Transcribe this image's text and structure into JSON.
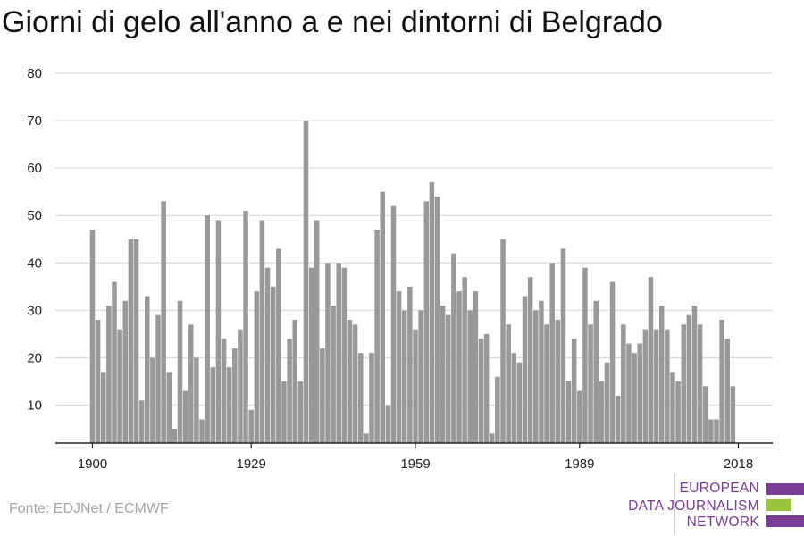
{
  "chart_title": "Giorni di gelo all'anno a e nei dintorni di Belgrado",
  "source": "Fonte: EDJNet / ECMWF",
  "logo": {
    "lines": [
      "EUROPEAN",
      "DATA JOURNALISM",
      "NETWORK"
    ],
    "colors": {
      "text": "#7a3d96",
      "purple": "#7a3d96",
      "green": "#9bc53d"
    }
  },
  "colors": {
    "bar": "#999999",
    "grid": "#dcdcdc",
    "axis": "#222222"
  },
  "chart_data": {
    "type": "bar",
    "title": "Giorni di gelo all'anno a e nei dintorni di Belgrado",
    "xlabel": "",
    "ylabel": "",
    "ylim": [
      2,
      80
    ],
    "yticks": [
      10,
      20,
      30,
      40,
      50,
      60,
      70,
      80
    ],
    "xticks": [
      1900,
      1929,
      1959,
      1989,
      2018
    ],
    "grid": true,
    "x_start": 1900,
    "x_end": 2018,
    "values": [
      47,
      28,
      17,
      31,
      36,
      26,
      32,
      45,
      45,
      11,
      33,
      20,
      29,
      53,
      17,
      5,
      32,
      13,
      27,
      20,
      7,
      50,
      18,
      49,
      24,
      18,
      22,
      26,
      51,
      9,
      34,
      49,
      39,
      35,
      43,
      15,
      24,
      28,
      15,
      70,
      39,
      49,
      22,
      40,
      31,
      40,
      39,
      28,
      27,
      21,
      4,
      21,
      47,
      55,
      10,
      52,
      34,
      30,
      35,
      26,
      30,
      53,
      57,
      54,
      31,
      29,
      42,
      34,
      37,
      30,
      34,
      24,
      25,
      4,
      16,
      45,
      27,
      21,
      19,
      33,
      37,
      30,
      32,
      27,
      40,
      28,
      43,
      15,
      24,
      13,
      39,
      27,
      32,
      15,
      19,
      36,
      12,
      27,
      23,
      21,
      23,
      26,
      37,
      26,
      31,
      26,
      17,
      15,
      27,
      29,
      31,
      27,
      14,
      7,
      7,
      28,
      24,
      14
    ]
  }
}
